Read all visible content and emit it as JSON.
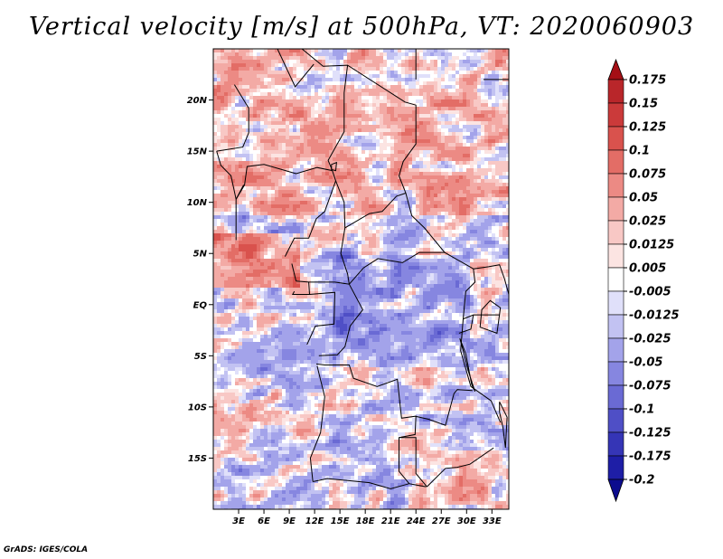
{
  "title": "Vertical velocity [m/s] at 500hPa, VT: 2020060903",
  "credit": "GrADS: IGES/COLA",
  "map": {
    "variable": "Vertical velocity",
    "units": "m/s",
    "level": "500hPa",
    "valid_time": "2020060903",
    "lon_range": [
      0,
      35
    ],
    "lat_range": [
      -20,
      25
    ],
    "lat_ticks": [
      {
        "value": 20,
        "label": "20N"
      },
      {
        "value": 15,
        "label": "15N"
      },
      {
        "value": 10,
        "label": "10N"
      },
      {
        "value": 5,
        "label": "5N"
      },
      {
        "value": 0,
        "label": "EQ"
      },
      {
        "value": -5,
        "label": "5S"
      },
      {
        "value": -10,
        "label": "10S"
      },
      {
        "value": -15,
        "label": "15S"
      }
    ],
    "lon_ticks": [
      {
        "value": 3,
        "label": "3E"
      },
      {
        "value": 6,
        "label": "6E"
      },
      {
        "value": 9,
        "label": "9E"
      },
      {
        "value": 12,
        "label": "12E"
      },
      {
        "value": 15,
        "label": "15E"
      },
      {
        "value": 18,
        "label": "18E"
      },
      {
        "value": 21,
        "label": "21E"
      },
      {
        "value": 24,
        "label": "24E"
      },
      {
        "value": 27,
        "label": "27E"
      },
      {
        "value": 30,
        "label": "30E"
      },
      {
        "value": 33,
        "label": "33E"
      }
    ]
  },
  "colorbar": {
    "labels": [
      "0.175",
      "0.15",
      "0.125",
      "0.1",
      "0.075",
      "0.05",
      "0.025",
      "0.0125",
      "0.005",
      "-0.005",
      "-0.0125",
      "-0.025",
      "-0.05",
      "-0.075",
      "-0.1",
      "-0.125",
      "-0.175",
      "-0.2"
    ],
    "colors": [
      "#a50f15",
      "#b9262a",
      "#cb3a3a",
      "#d9524d",
      "#e36d66",
      "#ec8a84",
      "#f3aaa5",
      "#f8c8c5",
      "#fce4e2",
      "#ffffff",
      "#e0e0fa",
      "#c2c2f2",
      "#a3a3ea",
      "#8686e0",
      "#6a6ad4",
      "#4f4fc6",
      "#3535b6",
      "#1e1ea6",
      "#0c0c8e"
    ]
  }
}
